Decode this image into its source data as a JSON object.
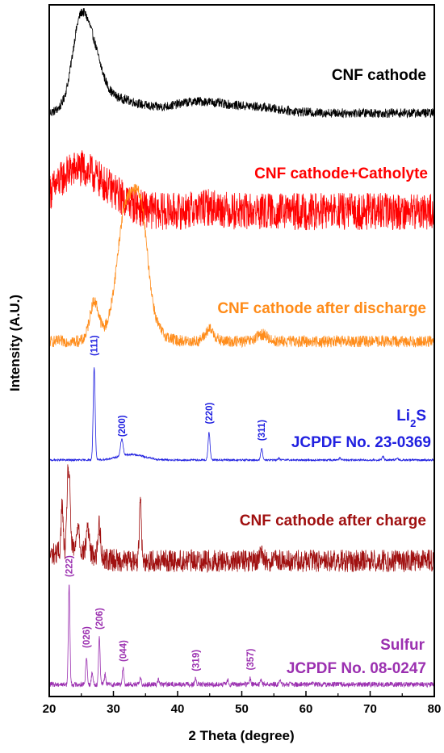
{
  "chart_data": {
    "type": "line",
    "xlabel": "2 Theta (degree)",
    "ylabel": "Intensity (A.U.)",
    "xlim": [
      20,
      80
    ],
    "xticks": [
      20,
      30,
      40,
      50,
      60,
      70,
      80
    ],
    "y_ticks_shown": false,
    "grid": false,
    "series": [
      {
        "name": "CNF cathode",
        "color": "#000000",
        "noise": 0.05,
        "peaks": [
          [
            25.8,
            0.85,
            1.8
          ],
          [
            24.5,
            0.3,
            1.0
          ],
          [
            30.5,
            0.15,
            3.5
          ],
          [
            43,
            0.12,
            4.0
          ],
          [
            52,
            0.06,
            4.0
          ]
        ]
      },
      {
        "name": "CNF cathode+Catholyte",
        "color": "#ff0000",
        "noise": 0.22,
        "peaks": [
          [
            24.5,
            0.5,
            3.5
          ],
          [
            30.5,
            0.1,
            2.5
          ],
          [
            45,
            0.05,
            2.0
          ]
        ]
      },
      {
        "name": "CNF cathode after discharge",
        "color": "#ff8c1a",
        "noise": 0.05,
        "peaks": [
          [
            27.0,
            0.32,
            0.7
          ],
          [
            31.8,
            0.75,
            1.2
          ],
          [
            34.2,
            0.78,
            1.1
          ],
          [
            33.0,
            0.4,
            2.5
          ],
          [
            45.0,
            0.1,
            0.7
          ],
          [
            53.2,
            0.06,
            0.8
          ]
        ]
      },
      {
        "name": "Li2S",
        "name_main": "Li",
        "name_sub": "2",
        "name_tail": "S",
        "reference": "JCPDF No. 23-0369",
        "color": "#2020e0",
        "noise": 0.01,
        "peaks": [
          [
            27.0,
            1.0,
            0.15
          ],
          [
            31.3,
            0.18,
            0.2
          ],
          [
            32.8,
            0.06,
            2.0
          ],
          [
            44.9,
            0.3,
            0.15
          ],
          [
            53.1,
            0.12,
            0.15
          ],
          [
            55.8,
            0.02,
            0.15
          ],
          [
            65.3,
            0.02,
            0.15
          ],
          [
            72.0,
            0.04,
            0.15
          ],
          [
            74.2,
            0.02,
            0.15
          ]
        ],
        "annotations": [
          {
            "label": "(111)",
            "x": 27.0,
            "h": 1.0
          },
          {
            "label": "(200)",
            "x": 31.3,
            "h": 0.18
          },
          {
            "label": "(220)",
            "x": 44.9,
            "h": 0.3
          },
          {
            "label": "(311)",
            "x": 53.1,
            "h": 0.12
          }
        ]
      },
      {
        "name": "CNF cathode after charge",
        "color": "#a01010",
        "noise": 0.12,
        "peaks": [
          [
            22.0,
            0.5,
            0.15
          ],
          [
            22.9,
            0.8,
            0.15
          ],
          [
            23.2,
            0.55,
            0.15
          ],
          [
            24.5,
            0.3,
            0.2
          ],
          [
            26.0,
            0.3,
            0.2
          ],
          [
            27.8,
            0.35,
            0.2
          ],
          [
            34.2,
            0.75,
            0.15
          ],
          [
            23.5,
            0.12,
            3.0
          ],
          [
            53.1,
            0.1,
            0.2
          ]
        ]
      },
      {
        "name": "Sulfur",
        "reference": "JCPDF No. 08-0247",
        "color": "#9b30b0",
        "noise": 0.025,
        "peaks": [
          [
            23.1,
            1.0,
            0.12
          ],
          [
            25.8,
            0.28,
            0.12
          ],
          [
            26.7,
            0.12,
            0.12
          ],
          [
            27.8,
            0.48,
            0.12
          ],
          [
            28.7,
            0.1,
            0.12
          ],
          [
            31.5,
            0.16,
            0.12
          ],
          [
            34.2,
            0.06,
            0.12
          ],
          [
            37.0,
            0.05,
            0.12
          ],
          [
            42.8,
            0.05,
            0.12
          ],
          [
            47.8,
            0.04,
            0.12
          ],
          [
            51.3,
            0.06,
            0.12
          ],
          [
            53.0,
            0.04,
            0.12
          ],
          [
            56.0,
            0.03,
            0.12
          ]
        ],
        "annotations": [
          {
            "label": "(222)",
            "x": 23.1,
            "h": 1.0
          },
          {
            "label": "(026)",
            "x": 25.8,
            "h": 0.28
          },
          {
            "label": "(206)",
            "x": 27.8,
            "h": 0.48
          },
          {
            "label": "(044)",
            "x": 31.5,
            "h": 0.16
          },
          {
            "label": "(319)",
            "x": 42.8,
            "h": 0.05
          },
          {
            "label": "(357)",
            "x": 51.3,
            "h": 0.06
          }
        ]
      }
    ]
  }
}
